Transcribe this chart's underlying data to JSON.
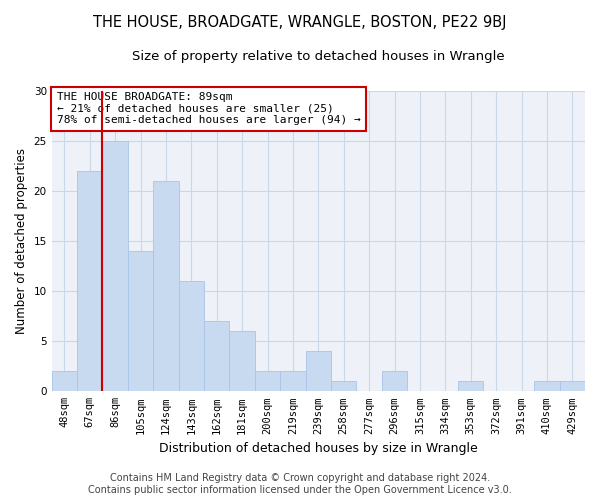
{
  "title": "THE HOUSE, BROADGATE, WRANGLE, BOSTON, PE22 9BJ",
  "subtitle": "Size of property relative to detached houses in Wrangle",
  "xlabel": "Distribution of detached houses by size in Wrangle",
  "ylabel": "Number of detached properties",
  "bin_labels": [
    "48sqm",
    "67sqm",
    "86sqm",
    "105sqm",
    "124sqm",
    "143sqm",
    "162sqm",
    "181sqm",
    "200sqm",
    "219sqm",
    "239sqm",
    "258sqm",
    "277sqm",
    "296sqm",
    "315sqm",
    "334sqm",
    "353sqm",
    "372sqm",
    "391sqm",
    "410sqm",
    "429sqm"
  ],
  "bar_heights": [
    2,
    22,
    25,
    14,
    21,
    11,
    7,
    6,
    2,
    2,
    4,
    1,
    0,
    2,
    0,
    0,
    1,
    0,
    0,
    1,
    1
  ],
  "bar_color": "#c8daf0",
  "bar_edge_color": "#a8c4e8",
  "grid_color": "#c8d8e8",
  "plot_bg_color": "#eef2f8",
  "vline_color": "#cc0000",
  "vline_x_index": 2,
  "annotation_title": "THE HOUSE BROADGATE: 89sqm",
  "annotation_line1": "← 21% of detached houses are smaller (25)",
  "annotation_line2": "78% of semi-detached houses are larger (94) →",
  "annotation_box_color": "#ffffff",
  "annotation_box_edge": "#cc0000",
  "footer_line1": "Contains HM Land Registry data © Crown copyright and database right 2024.",
  "footer_line2": "Contains public sector information licensed under the Open Government Licence v3.0.",
  "ylim": [
    0,
    30
  ],
  "yticks": [
    0,
    5,
    10,
    15,
    20,
    25,
    30
  ],
  "title_fontsize": 10.5,
  "subtitle_fontsize": 9.5,
  "xlabel_fontsize": 9,
  "ylabel_fontsize": 8.5,
  "tick_fontsize": 7.5,
  "annotation_fontsize": 8,
  "footer_fontsize": 7
}
